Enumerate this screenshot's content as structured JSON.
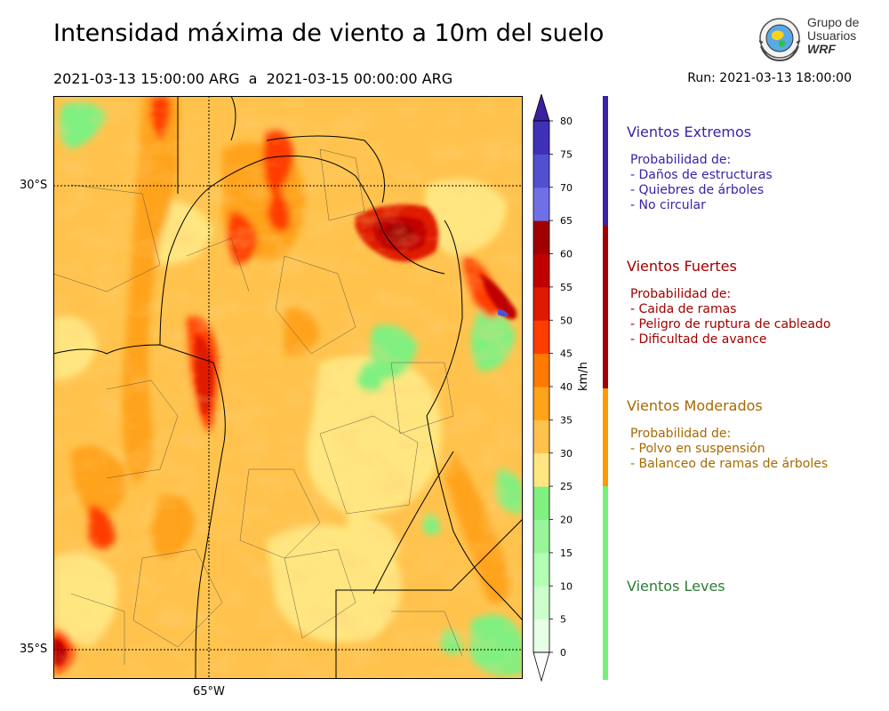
{
  "header": {
    "title": "Intensidad máxima de viento a 10m del suelo",
    "period": "2021-03-13 15:00:00 ARG  a  2021-03-15 00:00:00 ARG",
    "run": "Run: 2021-03-13 18:00:00"
  },
  "logo": {
    "line1": "Grupo de",
    "line2": "Usuarios",
    "line3": "WRF"
  },
  "map": {
    "lat_labels": [
      "30°S",
      "35°S"
    ],
    "lon_labels": [
      "65°W"
    ],
    "lat_values": [
      -30,
      -35
    ],
    "lon_values": [
      -65
    ]
  },
  "colorbar": {
    "unit": "km/h",
    "ticks": [
      "0",
      "5",
      "10",
      "15",
      "20",
      "25",
      "30",
      "35",
      "40",
      "45",
      "50",
      "55",
      "60",
      "65",
      "70",
      "75",
      "80"
    ],
    "colors": [
      "#e6ffe6",
      "#ccffcc",
      "#b3ffb3",
      "#99f599",
      "#80f080",
      "#ffe680",
      "#ffc34d",
      "#ffa31a",
      "#ff7a00",
      "#ff3d00",
      "#e01a00",
      "#c00000",
      "#a00000",
      "#7070e6",
      "#5050d0",
      "#4030b8"
    ],
    "over_color": "#3a20a0",
    "under_color": "#ffffff"
  },
  "categories": [
    {
      "title": "Vientos Extremos",
      "color": "#3b22a6",
      "sub": "Probabilidad de:\n- Daños de estructuras\n- Quiebres de árboles\n- No circular"
    },
    {
      "title": "Vientos Fuertes",
      "color": "#a00000",
      "sub": "Probabilidad de:\n- Caida de ramas\n- Peligro de ruptura de cableado\n- Dificultad de avance"
    },
    {
      "title": "Vientos Moderados",
      "color": "#a66a00",
      "sub": "Probabilidad de:\n- Polvo en suspensión\n- Balanceo de ramas de árboles"
    },
    {
      "title": "Vientos Leves",
      "color": "#2e7d32",
      "sub": ""
    }
  ],
  "category_bar_colors": [
    "#3b22a6",
    "#a00000",
    "#ff9900",
    "#77f077"
  ]
}
